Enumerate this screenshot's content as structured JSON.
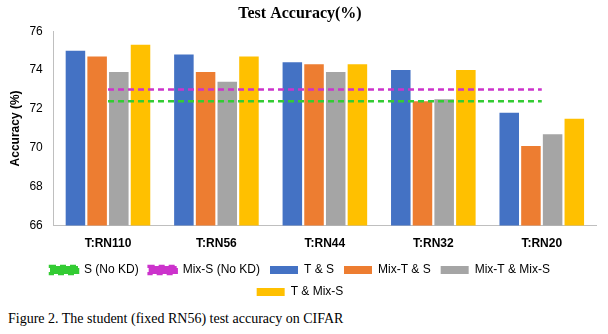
{
  "chart_data": {
    "type": "bar",
    "title": "Test Accuracy(%)",
    "y_label": "Accuracy (%)",
    "caption": "Figure 2. The student (fixed RN56) test accuracy on CIFAR",
    "categories": [
      "T:RN110",
      "T:RN56",
      "T:RN44",
      "T:RN32",
      "T:RN20"
    ],
    "series": [
      {
        "name": "T & S",
        "color": "#4472c4",
        "values": [
          75.0,
          74.8,
          74.4,
          74.0,
          71.8
        ]
      },
      {
        "name": "Mix-T & S",
        "color": "#ed7d31",
        "values": [
          74.7,
          73.9,
          74.3,
          72.4,
          70.1
        ]
      },
      {
        "name": "Mix-T & Mix-S",
        "color": "#a5a5a5",
        "values": [
          73.9,
          73.4,
          73.9,
          72.5,
          70.7
        ]
      },
      {
        "name": "T & Mix-S",
        "color": "#ffc000",
        "values": [
          75.3,
          74.7,
          74.3,
          74.0,
          71.5
        ]
      },
      {
        "name": "S (No KD)",
        "color": "#33cc33",
        "type": "line",
        "line_style": "dashed",
        "marker": "none",
        "values": [
          72.4,
          72.4,
          72.4,
          72.4,
          72.4
        ]
      },
      {
        "name": "Mix-S (No KD)",
        "color": "#cc33cc",
        "type": "line",
        "line_style": "dashed",
        "marker": "none",
        "values": [
          73.0,
          73.0,
          73.0,
          73.0,
          73.0
        ]
      }
    ],
    "ylim": [
      66,
      76
    ],
    "yticks": [
      66,
      68,
      70,
      72,
      74,
      76
    ],
    "grid": false,
    "legend": "bottom"
  }
}
